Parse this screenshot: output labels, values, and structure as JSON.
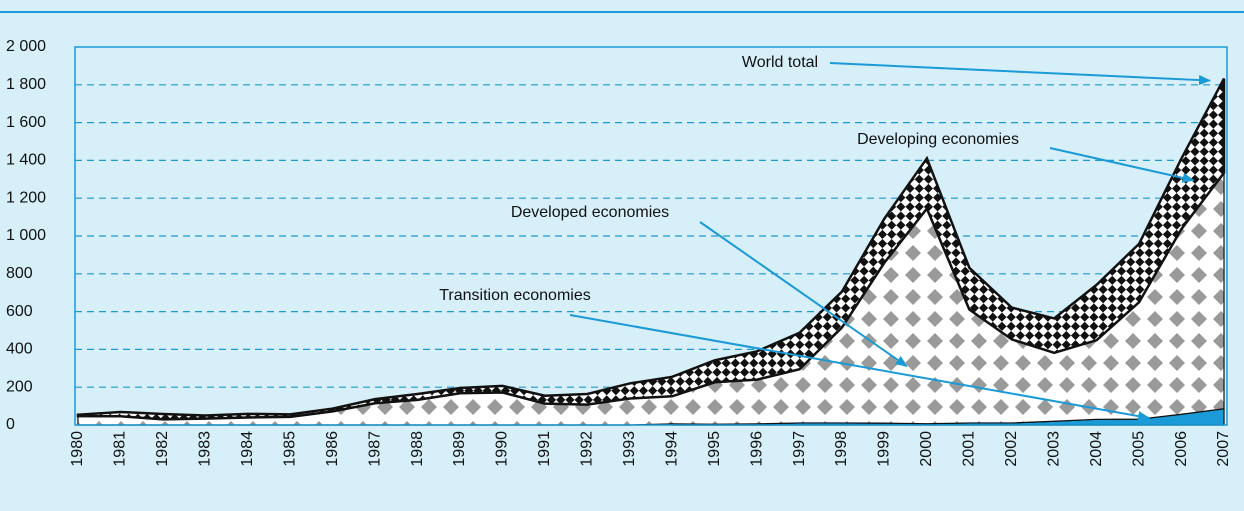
{
  "chart_data": {
    "type": "stacked_area",
    "total_label": "World total",
    "categories": [
      "1980",
      "1981",
      "1982",
      "1983",
      "1984",
      "1985",
      "1986",
      "1987",
      "1988",
      "1989",
      "1990",
      "1991",
      "1992",
      "1993",
      "1994",
      "1995",
      "1996",
      "1997",
      "1998",
      "1999",
      "2000",
      "2001",
      "2002",
      "2003",
      "2004",
      "2005",
      "2006",
      "2007"
    ],
    "series": [
      {
        "name": "Transition economies",
        "color": "#1a9ad6",
        "values": [
          null,
          null,
          null,
          null,
          null,
          null,
          null,
          null,
          null,
          null,
          null,
          null,
          null,
          null,
          6,
          4,
          6,
          11,
          11,
          10,
          7,
          11,
          11,
          20,
          30,
          31,
          57,
          86
        ]
      },
      {
        "name": "Developed economies",
        "color": "#9a9a9a",
        "values": [
          47,
          46,
          30,
          34,
          40,
          43,
          72,
          115,
          133,
          168,
          172,
          113,
          108,
          140,
          146,
          222,
          234,
          284,
          505,
          849,
          1138,
          600,
          442,
          362,
          419,
          619,
          981,
          1248
        ]
      },
      {
        "name": "Developing economies",
        "color": "#111111",
        "values": [
          7,
          23,
          28,
          16,
          19,
          13,
          15,
          22,
          31,
          28,
          35,
          42,
          56,
          80,
          103,
          116,
          150,
          193,
          190,
          233,
          266,
          221,
          168,
          182,
          293,
          309,
          373,
          499
        ]
      }
    ],
    "ylim": [
      0,
      2000
    ],
    "yticks": [
      0,
      200,
      400,
      600,
      800,
      {
        "value": 1000,
        "label": "1 000"
      },
      {
        "value": 1200,
        "label": "1 200"
      },
      {
        "value": 1400,
        "label": "1 400"
      },
      {
        "value": 1600,
        "label": "1 600"
      },
      {
        "value": 1800,
        "label": "1 800"
      },
      {
        "value": 2000,
        "label": "2 000"
      }
    ],
    "grid": true
  }
}
